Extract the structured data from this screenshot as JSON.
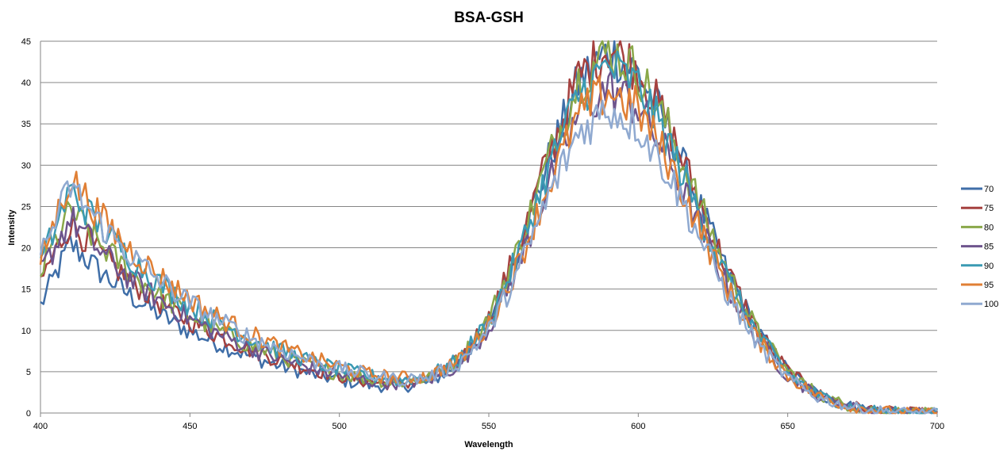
{
  "chart_data": {
    "type": "line",
    "title": "BSA-GSH",
    "xlabel": "Wavelength",
    "ylabel": "Intensity",
    "xlim": [
      400,
      700
    ],
    "ylim": [
      0,
      45
    ],
    "xticks": [
      400,
      450,
      500,
      550,
      600,
      650,
      700
    ],
    "yticks": [
      0,
      5,
      10,
      15,
      20,
      25,
      30,
      35,
      40,
      45
    ],
    "grid": true,
    "legend_position": "right",
    "x": [
      400,
      410,
      420,
      430,
      440,
      450,
      460,
      470,
      480,
      490,
      500,
      510,
      520,
      530,
      540,
      550,
      560,
      570,
      580,
      590,
      600,
      610,
      620,
      630,
      640,
      650,
      660,
      670,
      680,
      690,
      700
    ],
    "series": [
      {
        "name": "70",
        "color": "#3f6ea8",
        "values": [
          13,
          20.5,
          17.1,
          14.2,
          11.9,
          9.9,
          8.3,
          6.9,
          5.7,
          4.8,
          4.0,
          3.4,
          3.2,
          3.7,
          5.9,
          11.1,
          19.7,
          30.6,
          40.0,
          43.8,
          41.2,
          34.4,
          25.6,
          16.8,
          9.8,
          5.1,
          2.3,
          0.9,
          0.3,
          0.1,
          0.0
        ]
      },
      {
        "name": "75",
        "color": "#a5413f",
        "values": [
          16,
          23,
          19.2,
          16.0,
          13.3,
          11.1,
          9.3,
          7.7,
          6.4,
          5.4,
          4.5,
          3.8,
          3.5,
          4.0,
          6.3,
          11.4,
          20.1,
          31.1,
          40.6,
          44.4,
          41.7,
          34.9,
          26.0,
          17.1,
          9.9,
          5.1,
          2.3,
          1.0,
          0.3,
          0.1,
          0.0
        ]
      },
      {
        "name": "80",
        "color": "#8aa84a",
        "values": [
          17,
          24.5,
          20.4,
          17.0,
          14.2,
          11.8,
          9.9,
          8.2,
          6.9,
          5.7,
          4.8,
          4.1,
          3.7,
          4.2,
          6.3,
          11.4,
          20.0,
          30.8,
          40.2,
          43.9,
          41.3,
          34.5,
          25.7,
          16.9,
          9.8,
          5.1,
          2.3,
          0.9,
          0.3,
          0.1,
          0.0
        ]
      },
      {
        "name": "85",
        "color": "#6e548d",
        "values": [
          17,
          23.5,
          19.6,
          16.3,
          13.6,
          11.4,
          9.5,
          7.9,
          6.6,
          5.5,
          4.6,
          3.9,
          3.6,
          4.0,
          5.8,
          10.3,
          17.9,
          27.7,
          36.1,
          39.4,
          37.1,
          30.9,
          23.1,
          15.2,
          8.8,
          4.5,
          2.1,
          0.8,
          0.3,
          0.1,
          0.0
        ]
      },
      {
        "name": "90",
        "color": "#3b9ab3",
        "values": [
          18,
          27,
          22.5,
          18.8,
          15.7,
          13.0,
          10.9,
          9.1,
          7.6,
          6.3,
          5.3,
          4.5,
          4.0,
          4.5,
          6.4,
          11.1,
          19.3,
          29.6,
          38.5,
          42.0,
          39.5,
          33.0,
          24.5,
          16.1,
          9.5,
          4.8,
          2.2,
          0.9,
          0.3,
          0.1,
          0.0
        ]
      },
      {
        "name": "95",
        "color": "#e07f35",
        "values": [
          18.5,
          28.5,
          23.8,
          19.8,
          16.5,
          13.8,
          11.5,
          9.6,
          8.0,
          6.7,
          5.6,
          4.7,
          4.2,
          4.5,
          6.3,
          10.6,
          18.1,
          27.6,
          35.9,
          39.1,
          36.7,
          30.6,
          22.9,
          15.0,
          8.8,
          4.5,
          2.1,
          0.8,
          0.3,
          0.1,
          0.0
        ]
      },
      {
        "name": "100",
        "color": "#8fa9d0",
        "values": [
          19,
          27.5,
          22.9,
          19.1,
          16.0,
          13.3,
          11.1,
          9.2,
          7.7,
          6.4,
          5.4,
          4.6,
          4.0,
          4.3,
          6.0,
          10.0,
          17.2,
          26.2,
          34.0,
          37.0,
          34.8,
          29.1,
          21.7,
          14.2,
          8.3,
          4.2,
          1.9,
          0.8,
          0.3,
          0.1,
          0.0
        ]
      }
    ]
  }
}
